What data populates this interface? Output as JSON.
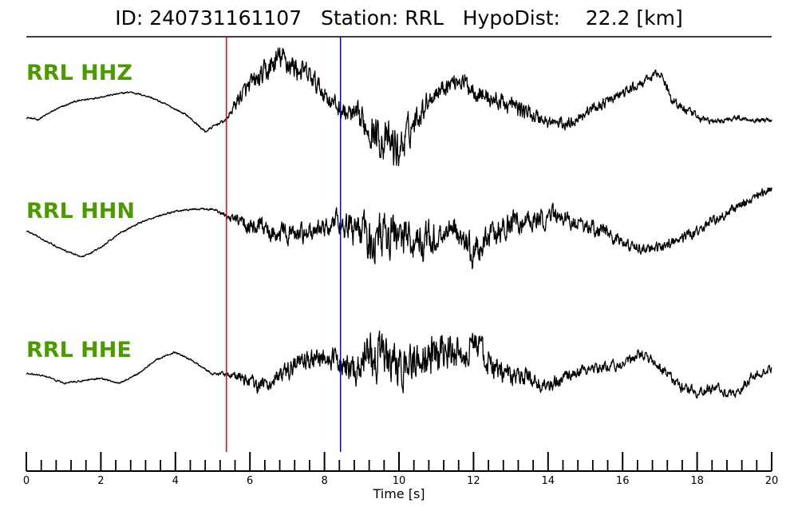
{
  "title": {
    "id_label": "ID:",
    "id_value": "240731161107",
    "station_label": "Station:",
    "station_value": "RRL",
    "hypodist_label": "HypoDist:",
    "hypodist_value": "22.2",
    "hypodist_unit": "[km]"
  },
  "chart_data": {
    "type": "line",
    "title": "ID: 240731161107   Station: RRL   HypoDist:    22.2 [km]",
    "xlabel": "Time [s]",
    "xlim": [
      0,
      20
    ],
    "x_major_ticks": [
      0,
      2,
      4,
      6,
      8,
      10,
      12,
      14,
      16,
      18,
      20
    ],
    "x_minor_step": 0.4,
    "grid": false,
    "label_color": "#4c9a00",
    "trace_color": "#000000",
    "picks": [
      {
        "phase": "P",
        "time": 5.37,
        "color": "#ff0000"
      },
      {
        "phase": "S",
        "time": 8.43,
        "color": "#0000cc"
      }
    ],
    "series": [
      {
        "name": "RRL HHZ",
        "x": [
          0,
          0.3,
          0.8,
          1.3,
          1.8,
          2.3,
          2.8,
          3.3,
          3.8,
          4.3,
          4.8,
          5.1,
          5.37,
          5.7,
          6.0,
          6.4,
          6.8,
          7.2,
          7.6,
          8.0,
          8.43,
          8.8,
          9.2,
          9.6,
          10.0,
          10.4,
          10.8,
          11.2,
          11.6,
          12.0,
          12.4,
          12.8,
          13.2,
          13.6,
          14.0,
          14.5,
          15.0,
          15.5,
          16.0,
          16.5,
          17.0,
          17.3,
          17.6,
          18.0,
          18.5,
          19.0,
          19.5,
          20.0
        ],
        "y": [
          0.05,
          0.0,
          0.22,
          0.38,
          0.45,
          0.52,
          0.58,
          0.48,
          0.3,
          0.1,
          -0.25,
          -0.1,
          0.0,
          0.45,
          0.7,
          0.95,
          1.3,
          1.1,
          0.9,
          0.55,
          0.2,
          0.05,
          -0.15,
          -0.45,
          -0.65,
          -0.05,
          0.45,
          0.7,
          0.85,
          0.65,
          0.45,
          0.35,
          0.25,
          0.1,
          -0.05,
          -0.1,
          0.15,
          0.35,
          0.55,
          0.75,
          1.0,
          0.45,
          0.25,
          0.05,
          -0.05,
          0.05,
          0.0,
          0.0
        ],
        "noise_amplitude": [
          0.02,
          0.02,
          0.02,
          0.02,
          0.02,
          0.02,
          0.02,
          0.02,
          0.02,
          0.02,
          0.03,
          0.03,
          0.04,
          0.18,
          0.22,
          0.28,
          0.3,
          0.28,
          0.25,
          0.22,
          0.2,
          0.28,
          0.38,
          0.45,
          0.48,
          0.3,
          0.22,
          0.2,
          0.2,
          0.22,
          0.22,
          0.2,
          0.2,
          0.18,
          0.15,
          0.14,
          0.12,
          0.12,
          0.12,
          0.1,
          0.1,
          0.12,
          0.12,
          0.08,
          0.07,
          0.06,
          0.05,
          0.05
        ]
      },
      {
        "name": "RRL HHN",
        "x": [
          0,
          0.5,
          1.0,
          1.5,
          2.0,
          2.5,
          3.0,
          3.5,
          4.0,
          4.5,
          5.0,
          5.37,
          5.8,
          6.3,
          6.8,
          7.3,
          7.8,
          8.43,
          8.8,
          9.2,
          9.6,
          10.0,
          10.5,
          11.0,
          11.5,
          12.0,
          12.5,
          13.0,
          13.5,
          14.0,
          14.5,
          15.0,
          15.5,
          16.0,
          16.5,
          17.0,
          17.5,
          18.0,
          18.5,
          19.0,
          19.5,
          20.0
        ],
        "y": [
          0.05,
          -0.15,
          -0.35,
          -0.5,
          -0.3,
          0.0,
          0.2,
          0.35,
          0.45,
          0.5,
          0.5,
          0.35,
          0.2,
          0.1,
          0.0,
          -0.05,
          0.05,
          0.25,
          0.05,
          -0.1,
          -0.05,
          0.0,
          -0.2,
          -0.1,
          0.15,
          -0.45,
          -0.1,
          0.2,
          0.25,
          0.35,
          0.3,
          0.15,
          0.05,
          -0.2,
          -0.35,
          -0.3,
          -0.15,
          0.05,
          0.3,
          0.5,
          0.75,
          0.95
        ],
        "noise_amplitude": [
          0.02,
          0.02,
          0.02,
          0.02,
          0.02,
          0.02,
          0.02,
          0.02,
          0.02,
          0.02,
          0.03,
          0.05,
          0.2,
          0.22,
          0.22,
          0.22,
          0.22,
          0.25,
          0.35,
          0.5,
          0.55,
          0.5,
          0.4,
          0.35,
          0.3,
          0.35,
          0.3,
          0.28,
          0.25,
          0.22,
          0.2,
          0.18,
          0.15,
          0.12,
          0.12,
          0.12,
          0.12,
          0.12,
          0.12,
          0.12,
          0.1,
          0.1
        ]
      },
      {
        "name": "RRL HHE",
        "x": [
          0,
          0.5,
          1.0,
          1.5,
          2.0,
          2.5,
          3.0,
          3.5,
          4.0,
          4.5,
          5.0,
          5.37,
          5.8,
          6.3,
          6.8,
          7.3,
          7.8,
          8.2,
          8.43,
          8.8,
          9.2,
          9.6,
          10.0,
          10.4,
          10.8,
          11.2,
          11.6,
          12.0,
          12.4,
          12.8,
          13.2,
          13.6,
          14.0,
          14.5,
          15.0,
          15.5,
          16.0,
          16.5,
          17.0,
          17.5,
          18.0,
          18.5,
          19.0,
          19.5,
          20.0
        ],
        "y": [
          0.0,
          -0.05,
          -0.2,
          -0.15,
          -0.1,
          -0.2,
          0.0,
          0.3,
          0.45,
          0.25,
          0.0,
          0.0,
          -0.1,
          -0.25,
          -0.1,
          0.2,
          0.35,
          0.3,
          0.2,
          0.1,
          0.4,
          0.35,
          0.0,
          0.25,
          0.4,
          0.5,
          0.35,
          0.65,
          0.2,
          -0.05,
          -0.05,
          -0.1,
          -0.3,
          -0.05,
          0.1,
          0.15,
          0.2,
          0.4,
          0.15,
          -0.25,
          -0.4,
          -0.3,
          -0.45,
          -0.05,
          0.1
        ],
        "noise_amplitude": [
          0.02,
          0.02,
          0.02,
          0.02,
          0.02,
          0.02,
          0.02,
          0.02,
          0.02,
          0.02,
          0.03,
          0.05,
          0.15,
          0.18,
          0.2,
          0.22,
          0.22,
          0.22,
          0.25,
          0.35,
          0.5,
          0.5,
          0.45,
          0.45,
          0.45,
          0.45,
          0.35,
          0.35,
          0.3,
          0.25,
          0.22,
          0.2,
          0.18,
          0.15,
          0.12,
          0.12,
          0.12,
          0.12,
          0.12,
          0.12,
          0.12,
          0.12,
          0.1,
          0.1,
          0.1
        ]
      }
    ]
  }
}
